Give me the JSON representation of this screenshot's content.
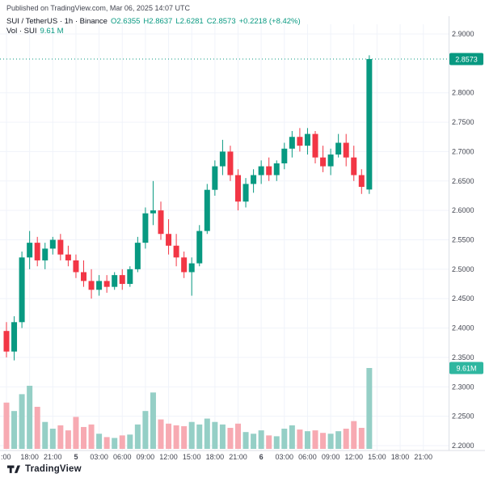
{
  "header": {
    "published_text": "Published on TradingView.com, Mar 06, 2025 14:07 UTC"
  },
  "legend": {
    "symbol_title": "SUI / TetherUS · 1h · Binance",
    "ohlc": {
      "o": "O2.6355",
      "h": "H2.8637",
      "l": "L2.6281",
      "c": "C2.8573",
      "change": "+0.2218 (+8.42%)"
    },
    "volume_label": "Vol · SUI",
    "volume_value": "9.61 M"
  },
  "price_axis": {
    "labels": [
      {
        "text": "2.9000",
        "value": 2.9
      },
      {
        "text": "2.8000",
        "value": 2.8
      },
      {
        "text": "2.7500",
        "value": 2.75
      },
      {
        "text": "2.7000",
        "value": 2.7
      },
      {
        "text": "2.6500",
        "value": 2.65
      },
      {
        "text": "2.6000",
        "value": 2.6
      },
      {
        "text": "2.5500",
        "value": 2.55
      },
      {
        "text": "2.5000",
        "value": 2.5
      },
      {
        "text": "2.4500",
        "value": 2.45
      },
      {
        "text": "2.4000",
        "value": 2.4
      },
      {
        "text": "2.3500",
        "value": 2.35
      },
      {
        "text": "2.3000",
        "value": 2.3
      },
      {
        "text": "2.2500",
        "value": 2.25
      },
      {
        "text": "2.2000",
        "value": 2.2
      }
    ],
    "last_price_badge": "2.8573",
    "volume_badge": "9.61M"
  },
  "time_axis": {
    "labels": [
      {
        "text": ":00",
        "index": 0
      },
      {
        "text": "18:00",
        "index": 3
      },
      {
        "text": "21:00",
        "index": 6
      },
      {
        "text": "5",
        "index": 9,
        "bold": true
      },
      {
        "text": "03:00",
        "index": 12
      },
      {
        "text": "06:00",
        "index": 15
      },
      {
        "text": "09:00",
        "index": 18
      },
      {
        "text": "12:00",
        "index": 21
      },
      {
        "text": "15:00",
        "index": 24
      },
      {
        "text": "18:00",
        "index": 27
      },
      {
        "text": "21:00",
        "index": 30
      },
      {
        "text": "6",
        "index": 33,
        "bold": true
      },
      {
        "text": "03:00",
        "index": 36
      },
      {
        "text": "06:00",
        "index": 39
      },
      {
        "text": "09:00",
        "index": 42
      },
      {
        "text": "12:00",
        "index": 45
      },
      {
        "text": "15:00",
        "index": 48
      },
      {
        "text": "18:00",
        "index": 51
      },
      {
        "text": "21:00",
        "index": 54
      }
    ]
  },
  "footer": {
    "brand": "TradingView"
  },
  "colors": {
    "up": "#089981",
    "down": "#F23645",
    "vol_up": "#95cfc6",
    "vol_down": "#f7aab2",
    "badge_price": "#089981",
    "badge_volume": "#2fb7a0",
    "axis_text": "#434651",
    "grid": "#f0f3fa",
    "sep": "#dcdfe6"
  },
  "chart_data": {
    "type": "candlestick",
    "title": "SUI / TetherUS · 1h · Binance",
    "symbol": "SUI / TetherUS",
    "interval": "1h",
    "exchange": "Binance",
    "last_price": 2.8573,
    "last_candle": {
      "open": 2.6355,
      "high": 2.8637,
      "low": 2.6281,
      "close": 2.8573,
      "change_abs": 0.2218,
      "change_pct": 8.42
    },
    "price_axis_range": [
      2.2,
      2.9
    ],
    "volume_axis": {
      "max": 9.61,
      "unit": "M",
      "last": 9.61
    },
    "columns": [
      "time",
      "open",
      "high",
      "low",
      "close",
      "volume_M"
    ],
    "rows": [
      [
        "Mar 4 15:00",
        2.395,
        2.41,
        2.35,
        2.36,
        5.5
      ],
      [
        "Mar 4 16:00",
        2.36,
        2.42,
        2.345,
        2.41,
        4.5
      ],
      [
        "Mar 4 17:00",
        2.41,
        2.53,
        2.4,
        2.52,
        6.5
      ],
      [
        "Mar 4 18:00",
        2.52,
        2.565,
        2.5,
        2.545,
        7.5
      ],
      [
        "Mar 4 19:00",
        2.545,
        2.555,
        2.505,
        2.515,
        5.0
      ],
      [
        "Mar 4 20:00",
        2.515,
        2.545,
        2.5,
        2.535,
        3.2
      ],
      [
        "Mar 4 21:00",
        2.535,
        2.555,
        2.525,
        2.55,
        2.4
      ],
      [
        "Mar 4 22:00",
        2.55,
        2.56,
        2.515,
        2.525,
        2.8
      ],
      [
        "Mar 4 23:00",
        2.525,
        2.54,
        2.505,
        2.515,
        2.2
      ],
      [
        "Mar 5 00:00",
        2.515,
        2.525,
        2.485,
        2.495,
        3.8
      ],
      [
        "Mar 5 01:00",
        2.495,
        2.515,
        2.47,
        2.48,
        2.6
      ],
      [
        "Mar 5 02:00",
        2.48,
        2.5,
        2.45,
        2.465,
        2.9
      ],
      [
        "Mar 5 03:00",
        2.465,
        2.49,
        2.455,
        2.48,
        1.8
      ],
      [
        "Mar 5 04:00",
        2.48,
        2.49,
        2.46,
        2.47,
        1.4
      ],
      [
        "Mar 5 05:00",
        2.47,
        2.495,
        2.465,
        2.49,
        1.3
      ],
      [
        "Mar 5 06:00",
        2.49,
        2.5,
        2.465,
        2.475,
        1.6
      ],
      [
        "Mar 5 07:00",
        2.475,
        2.505,
        2.47,
        2.5,
        1.7
      ],
      [
        "Mar 5 08:00",
        2.5,
        2.555,
        2.495,
        2.545,
        2.9
      ],
      [
        "Mar 5 09:00",
        2.545,
        2.605,
        2.535,
        2.595,
        4.5
      ],
      [
        "Mar 5 10:00",
        2.595,
        2.65,
        2.575,
        2.6,
        6.7
      ],
      [
        "Mar 5 11:00",
        2.6,
        2.615,
        2.55,
        2.56,
        3.5
      ],
      [
        "Mar 5 12:00",
        2.56,
        2.585,
        2.525,
        2.54,
        3.0
      ],
      [
        "Mar 5 13:00",
        2.54,
        2.56,
        2.505,
        2.52,
        2.8
      ],
      [
        "Mar 5 14:00",
        2.52,
        2.53,
        2.485,
        2.495,
        2.7
      ],
      [
        "Mar 5 15:00",
        2.495,
        2.52,
        2.455,
        2.51,
        3.2
      ],
      [
        "Mar 5 16:00",
        2.51,
        2.575,
        2.505,
        2.565,
        2.9
      ],
      [
        "Mar 5 17:00",
        2.565,
        2.645,
        2.56,
        2.635,
        3.6
      ],
      [
        "Mar 5 18:00",
        2.635,
        2.685,
        2.625,
        2.675,
        3.2
      ],
      [
        "Mar 5 19:00",
        2.675,
        2.72,
        2.66,
        2.7,
        2.9
      ],
      [
        "Mar 5 20:00",
        2.7,
        2.71,
        2.65,
        2.66,
        2.5
      ],
      [
        "Mar 5 21:00",
        2.66,
        2.67,
        2.6,
        2.615,
        3.0
      ],
      [
        "Mar 5 22:00",
        2.615,
        2.655,
        2.605,
        2.645,
        2.0
      ],
      [
        "Mar 5 23:00",
        2.645,
        2.67,
        2.63,
        2.66,
        1.8
      ],
      [
        "Mar 6 00:00",
        2.66,
        2.685,
        2.645,
        2.675,
        2.2
      ],
      [
        "Mar 6 01:00",
        2.675,
        2.69,
        2.65,
        2.66,
        1.6
      ],
      [
        "Mar 6 02:00",
        2.66,
        2.685,
        2.65,
        2.68,
        1.5
      ],
      [
        "Mar 6 03:00",
        2.68,
        2.715,
        2.67,
        2.705,
        2.4
      ],
      [
        "Mar 6 04:00",
        2.705,
        2.735,
        2.69,
        2.725,
        2.8
      ],
      [
        "Mar 6 05:00",
        2.725,
        2.74,
        2.7,
        2.71,
        2.3
      ],
      [
        "Mar 6 06:00",
        2.71,
        2.74,
        2.695,
        2.73,
        2.1
      ],
      [
        "Mar 6 07:00",
        2.73,
        2.735,
        2.68,
        2.69,
        2.2
      ],
      [
        "Mar 6 08:00",
        2.69,
        2.71,
        2.665,
        2.675,
        1.9
      ],
      [
        "Mar 6 09:00",
        2.675,
        2.705,
        2.66,
        2.695,
        1.8
      ],
      [
        "Mar 6 10:00",
        2.695,
        2.73,
        2.69,
        2.715,
        2.1
      ],
      [
        "Mar 6 11:00",
        2.715,
        2.73,
        2.675,
        2.69,
        2.4
      ],
      [
        "Mar 6 12:00",
        2.69,
        2.71,
        2.65,
        2.66,
        3.3
      ],
      [
        "Mar 6 13:00",
        2.66,
        2.67,
        2.628,
        2.64,
        2.5
      ],
      [
        "Mar 6 14:00",
        2.6355,
        2.8637,
        2.6281,
        2.8573,
        9.61
      ]
    ]
  }
}
